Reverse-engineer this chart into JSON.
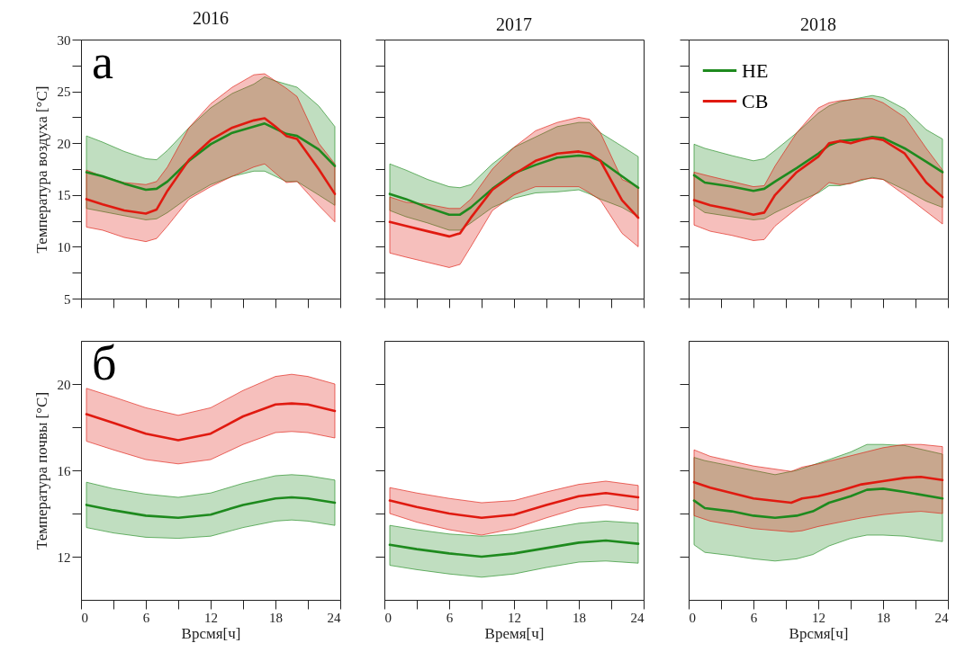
{
  "chart_data": [
    {
      "type": "line",
      "title": "2016",
      "ylabel": "Температура воздуха [°C]",
      "annotations": [
        "а"
      ],
      "tick_labels": "y",
      "xlim": [
        0,
        24
      ],
      "xticks": [
        0,
        {
          "value": 3,
          "label": null
        },
        6,
        {
          "value": 9,
          "label": null
        },
        12,
        {
          "value": 15,
          "label": null
        },
        18,
        {
          "value": 21,
          "label": null
        },
        24
      ],
      "ylim": [
        5,
        30
      ],
      "yticks": [
        5,
        {
          "value": 7.5,
          "label": null
        },
        10,
        {
          "value": 12.5,
          "label": null
        },
        15,
        {
          "value": 17.5,
          "label": null
        },
        20,
        {
          "value": 22.5,
          "label": null
        },
        25,
        {
          "value": 27.5,
          "label": null
        },
        30
      ],
      "series": [
        {
          "color": "#1e8a1e",
          "x": [
            0.5,
            2,
            4,
            6,
            7,
            8,
            10,
            12,
            14,
            16,
            17,
            18,
            19,
            20,
            22,
            23.5
          ],
          "values": [
            17.2,
            16.8,
            16.1,
            15.5,
            15.6,
            16.3,
            18.3,
            19.9,
            21.0,
            21.6,
            21.9,
            21.4,
            20.9,
            20.7,
            19.4,
            17.8
          ],
          "upper": [
            20.7,
            20.1,
            19.2,
            18.5,
            18.4,
            19.3,
            21.5,
            23.4,
            24.8,
            25.7,
            26.4,
            26.0,
            25.7,
            25.4,
            23.6,
            21.6
          ],
          "lower": [
            13.7,
            13.4,
            13.0,
            12.6,
            12.7,
            13.3,
            14.8,
            16.0,
            16.8,
            17.3,
            17.3,
            16.8,
            16.3,
            16.3,
            15.0,
            14.0
          ]
        },
        {
          "color": "#e01a10",
          "x": [
            0.5,
            2,
            4,
            6,
            7,
            8,
            10,
            12,
            14,
            16,
            17,
            18,
            19,
            20,
            22,
            23.5
          ],
          "values": [
            14.6,
            14.1,
            13.5,
            13.2,
            13.6,
            15.4,
            18.4,
            20.3,
            21.5,
            22.2,
            22.4,
            21.6,
            20.7,
            20.4,
            17.5,
            15.1
          ],
          "upper": [
            17.4,
            16.8,
            16.2,
            16.0,
            16.3,
            17.7,
            21.5,
            23.8,
            25.4,
            26.6,
            26.7,
            26.0,
            25.3,
            24.5,
            20.0,
            18.0
          ],
          "lower": [
            11.9,
            11.6,
            10.9,
            10.5,
            10.8,
            12.0,
            14.6,
            15.8,
            16.8,
            17.7,
            18.0,
            17.1,
            16.2,
            16.3,
            14.0,
            12.4
          ]
        }
      ]
    },
    {
      "type": "line",
      "title": "2017",
      "tick_labels": false,
      "xlim": [
        0,
        24
      ],
      "xticks": [
        0,
        {
          "value": 3,
          "label": null
        },
        6,
        {
          "value": 9,
          "label": null
        },
        12,
        {
          "value": 15,
          "label": null
        },
        18,
        {
          "value": 21,
          "label": null
        },
        24
      ],
      "ylim": [
        5,
        30
      ],
      "yticks": [
        5,
        {
          "value": 7.5,
          "label": null
        },
        10,
        {
          "value": 12.5,
          "label": null
        },
        15,
        {
          "value": 17.5,
          "label": null
        },
        20,
        {
          "value": 22.5,
          "label": null
        },
        25,
        {
          "value": 27.5,
          "label": null
        },
        30
      ],
      "series": [
        {
          "color": "#1e8a1e",
          "x": [
            0.5,
            2,
            4,
            6,
            7,
            8,
            10,
            12,
            14,
            16,
            18,
            19,
            20,
            22,
            23.5
          ],
          "values": [
            15.1,
            14.6,
            13.8,
            13.1,
            13.1,
            13.8,
            15.6,
            17.1,
            17.9,
            18.6,
            18.8,
            18.7,
            18.3,
            16.8,
            15.7
          ],
          "upper": [
            18.0,
            17.4,
            16.5,
            15.8,
            15.7,
            16.0,
            18.0,
            19.6,
            20.6,
            21.6,
            22.0,
            22.0,
            21.0,
            19.7,
            18.7
          ],
          "lower": [
            13.5,
            12.9,
            12.3,
            11.6,
            11.6,
            12.3,
            13.8,
            14.7,
            15.2,
            15.3,
            15.5,
            15.1,
            14.6,
            13.8,
            12.9
          ]
        },
        {
          "color": "#e01a10",
          "x": [
            0.5,
            2,
            4,
            6,
            7,
            8,
            10,
            12,
            14,
            16,
            18,
            19,
            20,
            22,
            23.5
          ],
          "values": [
            12.4,
            12.0,
            11.5,
            11.0,
            11.3,
            12.8,
            15.5,
            17.0,
            18.3,
            19.0,
            19.2,
            19.0,
            18.3,
            14.5,
            12.8
          ],
          "upper": [
            14.8,
            14.3,
            14.1,
            13.7,
            13.7,
            14.6,
            17.5,
            19.6,
            21.2,
            22.0,
            22.5,
            22.3,
            21.0,
            16.5,
            15.8
          ],
          "lower": [
            9.4,
            9.0,
            8.5,
            8.0,
            8.3,
            10.0,
            13.5,
            15.0,
            15.8,
            15.8,
            15.8,
            15.2,
            14.5,
            11.3,
            10.0
          ]
        }
      ]
    },
    {
      "type": "line",
      "title": "2018",
      "tick_labels": false,
      "legend": "top left",
      "xlim": [
        0,
        24
      ],
      "xticks": [
        0,
        {
          "value": 3,
          "label": null
        },
        6,
        {
          "value": 9,
          "label": null
        },
        12,
        {
          "value": 15,
          "label": null
        },
        18,
        {
          "value": 21,
          "label": null
        },
        24
      ],
      "ylim": [
        5,
        30
      ],
      "yticks": [
        5,
        {
          "value": 7.5,
          "label": null
        },
        10,
        {
          "value": 12.5,
          "label": null
        },
        15,
        {
          "value": 17.5,
          "label": null
        },
        20,
        {
          "value": 22.5,
          "label": null
        },
        25,
        {
          "value": 27.5,
          "label": null
        },
        30
      ],
      "series": [
        {
          "name": "НЕ",
          "color": "#1e8a1e",
          "x": [
            0.5,
            1.5,
            4,
            6,
            7,
            8,
            10,
            12,
            13,
            14,
            16,
            17,
            18,
            20,
            22,
            23.5
          ],
          "values": [
            16.9,
            16.2,
            15.8,
            15.4,
            15.6,
            16.3,
            17.6,
            19.0,
            19.8,
            20.2,
            20.4,
            20.6,
            20.5,
            19.5,
            18.2,
            17.2
          ],
          "upper": [
            19.9,
            19.5,
            18.8,
            18.3,
            18.5,
            19.3,
            21.0,
            22.9,
            23.6,
            24.0,
            24.4,
            24.6,
            24.4,
            23.3,
            21.3,
            20.4
          ],
          "lower": [
            14.0,
            13.3,
            12.9,
            12.6,
            12.7,
            13.3,
            14.3,
            15.2,
            15.9,
            15.9,
            16.4,
            16.7,
            16.5,
            15.5,
            14.4,
            13.8
          ]
        },
        {
          "name": "СВ",
          "color": "#e01a10",
          "x": [
            0.5,
            2,
            4,
            6,
            7,
            8,
            10,
            12,
            13,
            14,
            15,
            16,
            17,
            18,
            20,
            22,
            23.5
          ],
          "values": [
            14.5,
            14.0,
            13.6,
            13.1,
            13.3,
            15.0,
            17.2,
            18.7,
            20.0,
            20.2,
            20.0,
            20.3,
            20.5,
            20.3,
            19.0,
            16.2,
            14.8
          ],
          "upper": [
            17.2,
            16.8,
            16.3,
            15.8,
            15.9,
            17.8,
            21.0,
            23.4,
            23.9,
            24.1,
            24.2,
            24.3,
            24.3,
            23.9,
            22.5,
            19.5,
            17.4
          ],
          "lower": [
            12.1,
            11.5,
            11.1,
            10.6,
            10.7,
            12.0,
            13.7,
            15.3,
            16.2,
            16.0,
            16.1,
            16.5,
            16.6,
            16.5,
            15.0,
            13.4,
            12.2
          ]
        }
      ]
    },
    {
      "type": "line",
      "ylabel": "Температура почвы [°C]",
      "xlabel": "Врсмя[ч]",
      "annotations": [
        "б"
      ],
      "xlim": [
        0,
        24
      ],
      "xticks": [
        0,
        {
          "value": 3,
          "label": null
        },
        6,
        {
          "value": 9,
          "label": null
        },
        12,
        {
          "value": 15,
          "label": null
        },
        18,
        {
          "value": 21,
          "label": null
        },
        24
      ],
      "ylim": [
        10,
        22
      ],
      "yticks": [
        12,
        {
          "value": 14,
          "label": null
        },
        16,
        {
          "value": 18,
          "label": null
        },
        20
      ],
      "series": [
        {
          "color": "#1e8a1e",
          "x": [
            0.5,
            3,
            6,
            9,
            12,
            15,
            18,
            19.5,
            21,
            23.5
          ],
          "values": [
            14.4,
            14.15,
            13.9,
            13.8,
            13.95,
            14.4,
            14.7,
            14.75,
            14.7,
            14.5
          ],
          "upper": [
            15.45,
            15.15,
            14.9,
            14.75,
            14.95,
            15.4,
            15.75,
            15.8,
            15.75,
            15.55
          ],
          "lower": [
            13.35,
            13.1,
            12.9,
            12.85,
            12.95,
            13.35,
            13.65,
            13.7,
            13.65,
            13.45
          ]
        },
        {
          "color": "#e01a10",
          "x": [
            0.5,
            3,
            6,
            9,
            12,
            15,
            18,
            19.5,
            21,
            23.5
          ],
          "values": [
            18.6,
            18.2,
            17.7,
            17.4,
            17.7,
            18.5,
            19.05,
            19.1,
            19.05,
            18.75
          ],
          "upper": [
            19.8,
            19.4,
            18.9,
            18.55,
            18.9,
            19.7,
            20.35,
            20.45,
            20.35,
            20.0
          ],
          "lower": [
            17.35,
            16.95,
            16.5,
            16.3,
            16.5,
            17.2,
            17.75,
            17.8,
            17.75,
            17.5
          ]
        }
      ]
    },
    {
      "type": "line",
      "xlabel": "Время[ч]",
      "tick_labels": "x",
      "xlim": [
        0,
        24
      ],
      "xticks": [
        0,
        {
          "value": 3,
          "label": null
        },
        6,
        {
          "value": 9,
          "label": null
        },
        12,
        {
          "value": 15,
          "label": null
        },
        18,
        {
          "value": 21,
          "label": null
        },
        24
      ],
      "ylim": [
        10,
        22
      ],
      "yticks": [
        12,
        {
          "value": 14,
          "label": null
        },
        16,
        {
          "value": 18,
          "label": null
        },
        20
      ],
      "series": [
        {
          "color": "#1e8a1e",
          "x": [
            0.5,
            3,
            6,
            9,
            12,
            15,
            18,
            20.5,
            23.5
          ],
          "values": [
            12.55,
            12.35,
            12.15,
            12.0,
            12.15,
            12.4,
            12.65,
            12.75,
            12.6
          ],
          "upper": [
            13.45,
            13.25,
            13.05,
            12.95,
            13.05,
            13.3,
            13.55,
            13.65,
            13.55
          ],
          "lower": [
            11.6,
            11.4,
            11.2,
            11.05,
            11.2,
            11.5,
            11.75,
            11.8,
            11.7
          ]
        },
        {
          "color": "#e01a10",
          "x": [
            0.5,
            3,
            6,
            9,
            12,
            15,
            18,
            20.5,
            23.5
          ],
          "values": [
            14.6,
            14.3,
            14.0,
            13.8,
            13.95,
            14.4,
            14.8,
            14.95,
            14.75
          ],
          "upper": [
            15.2,
            14.95,
            14.7,
            14.5,
            14.6,
            15.0,
            15.35,
            15.5,
            15.3
          ],
          "lower": [
            14.0,
            13.6,
            13.25,
            13.0,
            13.3,
            13.8,
            14.25,
            14.4,
            14.15
          ]
        }
      ]
    },
    {
      "type": "line",
      "xlabel": "Врсмя[ч]",
      "tick_labels": "x",
      "xlim": [
        0,
        24
      ],
      "xticks": [
        0,
        {
          "value": 3,
          "label": null
        },
        6,
        {
          "value": 9,
          "label": null
        },
        12,
        {
          "value": 15,
          "label": null
        },
        18,
        {
          "value": 21,
          "label": null
        },
        24
      ],
      "ylim": [
        10,
        22
      ],
      "yticks": [
        12,
        {
          "value": 14,
          "label": null
        },
        16,
        {
          "value": 18,
          "label": null
        },
        20
      ],
      "series": [
        {
          "color": "#1e8a1e",
          "x": [
            0.5,
            1.5,
            4,
            6,
            8,
            10,
            11.5,
            13,
            15,
            16.5,
            18,
            20,
            23.5
          ],
          "values": [
            14.6,
            14.25,
            14.1,
            13.9,
            13.8,
            13.9,
            14.1,
            14.5,
            14.8,
            15.1,
            15.15,
            15.0,
            14.7
          ],
          "upper": [
            16.6,
            16.45,
            16.2,
            16.0,
            15.8,
            16.0,
            16.25,
            16.5,
            16.85,
            17.2,
            17.2,
            17.15,
            16.75
          ],
          "lower": [
            12.55,
            12.2,
            12.05,
            11.9,
            11.8,
            11.9,
            12.1,
            12.5,
            12.85,
            13.0,
            13.0,
            12.95,
            12.7
          ]
        },
        {
          "color": "#e01a10",
          "x": [
            0.5,
            2,
            6,
            9.5,
            10.5,
            12,
            14,
            16,
            18,
            20,
            21.5,
            23.5
          ],
          "values": [
            15.45,
            15.2,
            14.7,
            14.5,
            14.7,
            14.8,
            15.05,
            15.35,
            15.5,
            15.65,
            15.7,
            15.55
          ],
          "upper": [
            16.95,
            16.65,
            16.2,
            15.95,
            16.15,
            16.3,
            16.55,
            16.8,
            17.05,
            17.2,
            17.2,
            17.1
          ],
          "lower": [
            13.9,
            13.65,
            13.3,
            13.15,
            13.2,
            13.4,
            13.6,
            13.8,
            13.95,
            14.05,
            14.1,
            14.0
          ]
        }
      ]
    }
  ]
}
